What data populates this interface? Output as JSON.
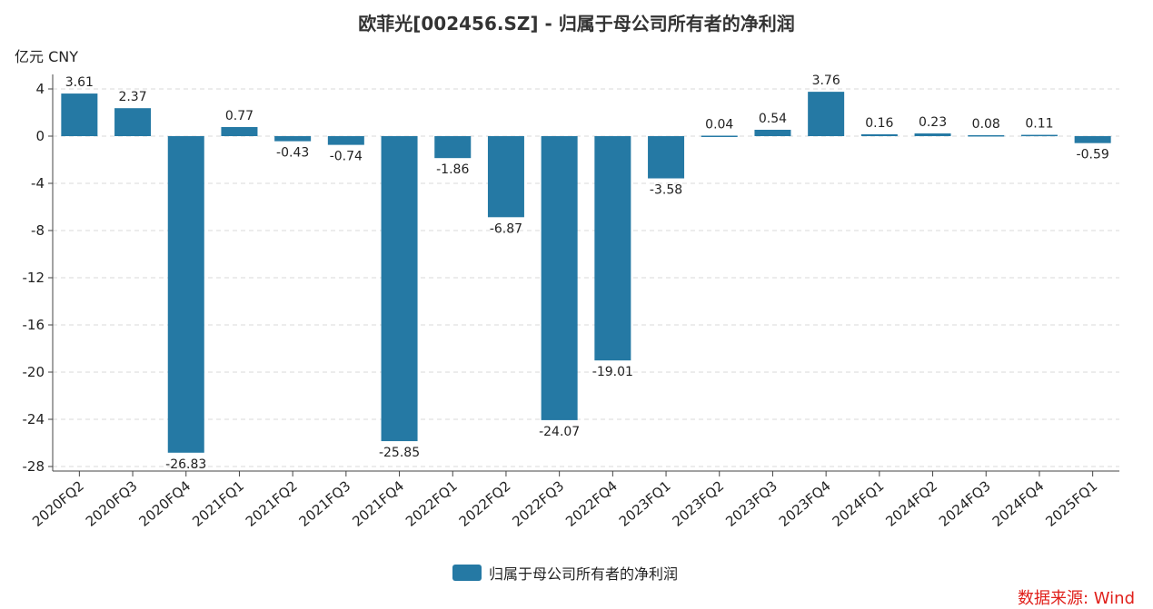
{
  "title": "欧菲光[002456.SZ] - 归属于母公司所有者的净利润",
  "unit_label": "亿元  CNY",
  "source_label": "数据来源: Wind",
  "colors": {
    "bar": "#2579a4",
    "grid": "#d8d8d8",
    "axis": "#444444"
  },
  "chart_data": {
    "type": "bar",
    "title": "欧菲光[002456.SZ] - 归属于母公司所有者的净利润",
    "xlabel": "",
    "ylabel": "亿元  CNY",
    "ylim": [
      -28,
      4
    ],
    "yticks": [
      4,
      0,
      -4,
      -8,
      -12,
      -16,
      -20,
      -24,
      -28
    ],
    "categories": [
      "2020FQ2",
      "2020FQ3",
      "2020FQ4",
      "2021FQ1",
      "2021FQ2",
      "2021FQ3",
      "2021FQ4",
      "2022FQ1",
      "2022FQ2",
      "2022FQ3",
      "2022FQ4",
      "2023FQ1",
      "2023FQ2",
      "2023FQ3",
      "2023FQ4",
      "2024FQ1",
      "2024FQ2",
      "2024FQ3",
      "2024FQ4",
      "2025FQ1"
    ],
    "series": [
      {
        "name": "归属于母公司所有者的净利润",
        "values": [
          3.61,
          2.37,
          -26.83,
          0.77,
          -0.43,
          -0.74,
          -25.85,
          -1.86,
          -6.87,
          -24.07,
          -19.01,
          -3.58,
          0.04,
          0.54,
          3.76,
          0.16,
          0.23,
          0.08,
          0.11,
          -0.59
        ],
        "labels": [
          "3.61",
          "2.37",
          "-26.83",
          "0.77",
          "-0.43",
          "-0.74",
          "-25.85",
          "-1.86",
          "-6.87",
          "-24.07",
          "-19.01",
          "-3.58",
          "0.04",
          "0.54",
          "3.76",
          "0.16",
          "0.23",
          "0.08",
          "0.11",
          "-0.59"
        ]
      }
    ],
    "grid": true,
    "legend_position": "bottom-center"
  }
}
